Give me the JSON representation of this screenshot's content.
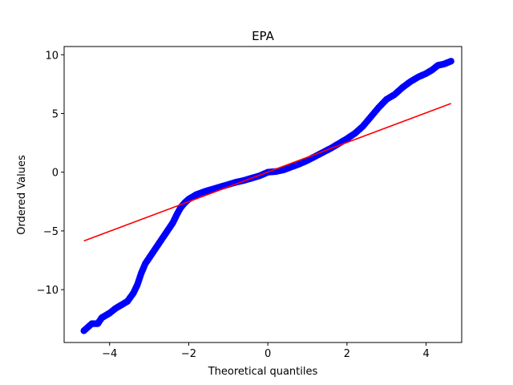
{
  "chart_data": {
    "type": "scatter",
    "title": "EPA",
    "xlabel": "Theoretical quantiles",
    "ylabel": "Ordered Values",
    "xlim": [
      -5.15,
      4.9
    ],
    "ylim": [
      -14.5,
      10.7
    ],
    "xticks": [
      -4,
      -2,
      0,
      2,
      4
    ],
    "yticks": [
      -10,
      -5,
      0,
      5,
      10
    ],
    "grid": false,
    "series": [
      {
        "kind": "points",
        "color": "#0000ff",
        "points": [
          [
            -4.65,
            -13.5
          ],
          [
            -4.45,
            -12.9
          ],
          [
            -4.3,
            -12.9
          ],
          [
            -4.2,
            -12.4
          ],
          [
            -4.1,
            -12.2
          ],
          [
            -4.0,
            -12.0
          ],
          [
            -3.85,
            -11.6
          ],
          [
            -3.7,
            -11.3
          ],
          [
            -3.55,
            -11.0
          ],
          [
            -3.4,
            -10.3
          ],
          [
            -3.3,
            -9.6
          ],
          [
            -3.2,
            -8.6
          ],
          [
            -3.1,
            -7.8
          ],
          [
            -3.0,
            -7.3
          ],
          [
            -2.9,
            -6.8
          ],
          [
            -2.8,
            -6.3
          ],
          [
            -2.7,
            -5.8
          ],
          [
            -2.6,
            -5.3
          ],
          [
            -2.5,
            -4.8
          ],
          [
            -2.4,
            -4.3
          ],
          [
            -2.3,
            -3.6
          ],
          [
            -2.2,
            -3.0
          ],
          [
            -2.1,
            -2.6
          ],
          [
            -2.0,
            -2.3
          ],
          [
            -1.9,
            -2.1
          ],
          [
            -1.8,
            -1.9
          ],
          [
            -1.6,
            -1.65
          ],
          [
            -1.4,
            -1.45
          ],
          [
            -1.2,
            -1.25
          ],
          [
            -1.0,
            -1.05
          ],
          [
            -0.8,
            -0.85
          ],
          [
            -0.6,
            -0.7
          ],
          [
            -0.4,
            -0.5
          ],
          [
            -0.2,
            -0.3
          ],
          [
            0.0,
            0.0
          ],
          [
            0.2,
            0.05
          ],
          [
            0.4,
            0.2
          ],
          [
            0.6,
            0.45
          ],
          [
            0.8,
            0.7
          ],
          [
            1.0,
            1.0
          ],
          [
            1.2,
            1.35
          ],
          [
            1.4,
            1.7
          ],
          [
            1.6,
            2.05
          ],
          [
            1.8,
            2.45
          ],
          [
            2.0,
            2.85
          ],
          [
            2.2,
            3.3
          ],
          [
            2.4,
            3.9
          ],
          [
            2.6,
            4.7
          ],
          [
            2.8,
            5.5
          ],
          [
            3.0,
            6.2
          ],
          [
            3.2,
            6.6
          ],
          [
            3.4,
            7.2
          ],
          [
            3.6,
            7.7
          ],
          [
            3.8,
            8.1
          ],
          [
            4.0,
            8.4
          ],
          [
            4.15,
            8.7
          ],
          [
            4.3,
            9.1
          ],
          [
            4.45,
            9.2
          ],
          [
            4.63,
            9.45
          ]
        ]
      },
      {
        "kind": "line",
        "color": "#ff0000",
        "points": [
          [
            -4.65,
            -5.85
          ],
          [
            4.63,
            5.85
          ]
        ]
      }
    ]
  }
}
